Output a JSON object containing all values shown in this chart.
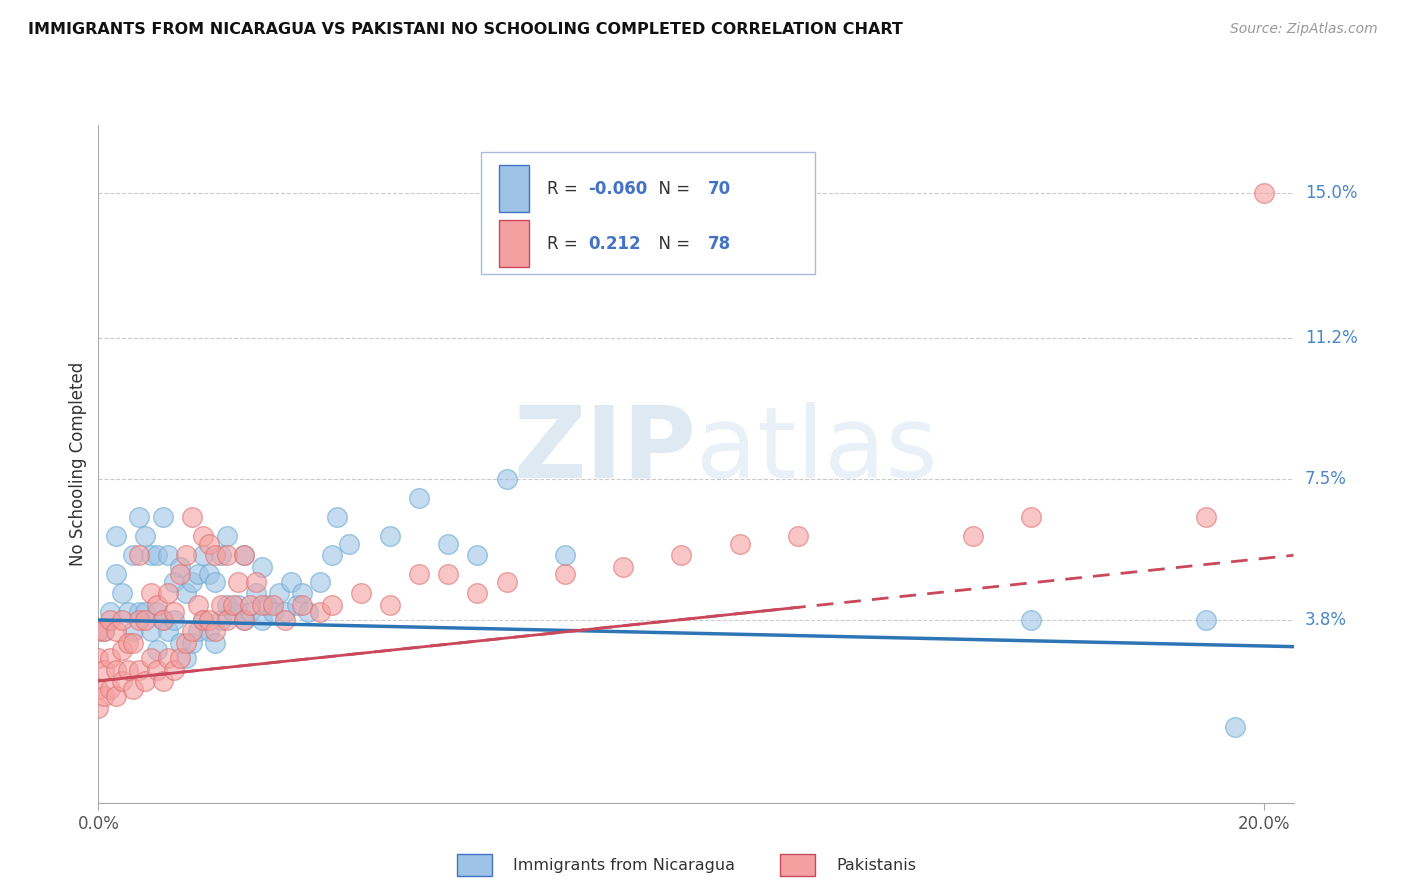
{
  "title": "IMMIGRANTS FROM NICARAGUA VS PAKISTANI NO SCHOOLING COMPLETED CORRELATION CHART",
  "source": "Source: ZipAtlas.com",
  "ylabel": "No Schooling Completed",
  "xlim": [
    0.0,
    0.205
  ],
  "ylim": [
    -0.01,
    0.168
  ],
  "yticks": [
    0.038,
    0.075,
    0.112,
    0.15
  ],
  "ytick_labels": [
    "3.8%",
    "7.5%",
    "11.2%",
    "15.0%"
  ],
  "xtick_left_label": "0.0%",
  "xtick_right_label": "20.0%",
  "legend_r1": "-0.060",
  "legend_n1": "70",
  "legend_r2": "0.212",
  "legend_n2": "78",
  "series1_label": "Immigrants from Nicaragua",
  "series2_label": "Pakistanis",
  "series1_color": "#9DC3E6",
  "series2_color": "#F4A0A0",
  "trend1_color": "#2E75B6",
  "trend2_color": "#C9485B",
  "watermark": "ZIPatlas",
  "watermark_color": "#D0E4F0",
  "background_color": "#FFFFFF",
  "grid_color": "#CCCCCC",
  "blue_scatter_x": [
    0.001,
    0.002,
    0.003,
    0.003,
    0.004,
    0.005,
    0.006,
    0.006,
    0.007,
    0.007,
    0.008,
    0.008,
    0.009,
    0.009,
    0.01,
    0.01,
    0.01,
    0.011,
    0.011,
    0.012,
    0.012,
    0.013,
    0.013,
    0.014,
    0.014,
    0.015,
    0.015,
    0.016,
    0.016,
    0.017,
    0.017,
    0.018,
    0.018,
    0.019,
    0.019,
    0.02,
    0.02,
    0.021,
    0.021,
    0.022,
    0.022,
    0.023,
    0.024,
    0.025,
    0.025,
    0.026,
    0.027,
    0.028,
    0.028,
    0.029,
    0.03,
    0.031,
    0.032,
    0.033,
    0.034,
    0.035,
    0.036,
    0.038,
    0.04,
    0.041,
    0.043,
    0.05,
    0.055,
    0.06,
    0.065,
    0.07,
    0.08,
    0.16,
    0.19,
    0.195
  ],
  "blue_scatter_y": [
    0.035,
    0.04,
    0.05,
    0.06,
    0.045,
    0.04,
    0.035,
    0.055,
    0.04,
    0.065,
    0.04,
    0.06,
    0.035,
    0.055,
    0.03,
    0.04,
    0.055,
    0.038,
    0.065,
    0.035,
    0.055,
    0.038,
    0.048,
    0.032,
    0.052,
    0.028,
    0.045,
    0.032,
    0.048,
    0.035,
    0.05,
    0.038,
    0.055,
    0.035,
    0.05,
    0.032,
    0.048,
    0.038,
    0.055,
    0.042,
    0.06,
    0.04,
    0.042,
    0.038,
    0.055,
    0.04,
    0.045,
    0.038,
    0.052,
    0.042,
    0.04,
    0.045,
    0.04,
    0.048,
    0.042,
    0.045,
    0.04,
    0.048,
    0.055,
    0.065,
    0.058,
    0.06,
    0.07,
    0.058,
    0.055,
    0.075,
    0.055,
    0.038,
    0.038,
    0.01
  ],
  "pink_scatter_x": [
    0.0,
    0.0,
    0.0,
    0.0,
    0.001,
    0.001,
    0.001,
    0.002,
    0.002,
    0.002,
    0.003,
    0.003,
    0.003,
    0.004,
    0.004,
    0.004,
    0.005,
    0.005,
    0.006,
    0.006,
    0.007,
    0.007,
    0.007,
    0.008,
    0.008,
    0.009,
    0.009,
    0.01,
    0.01,
    0.011,
    0.011,
    0.012,
    0.012,
    0.013,
    0.013,
    0.014,
    0.014,
    0.015,
    0.015,
    0.016,
    0.016,
    0.017,
    0.018,
    0.018,
    0.019,
    0.019,
    0.02,
    0.02,
    0.021,
    0.022,
    0.022,
    0.023,
    0.024,
    0.025,
    0.025,
    0.026,
    0.027,
    0.028,
    0.03,
    0.032,
    0.035,
    0.038,
    0.04,
    0.045,
    0.05,
    0.055,
    0.06,
    0.065,
    0.07,
    0.08,
    0.09,
    0.1,
    0.11,
    0.12,
    0.15,
    0.16,
    0.19,
    0.2
  ],
  "pink_scatter_y": [
    0.015,
    0.02,
    0.028,
    0.035,
    0.018,
    0.025,
    0.035,
    0.02,
    0.028,
    0.038,
    0.018,
    0.025,
    0.035,
    0.022,
    0.03,
    0.038,
    0.025,
    0.032,
    0.02,
    0.032,
    0.025,
    0.038,
    0.055,
    0.022,
    0.038,
    0.028,
    0.045,
    0.025,
    0.042,
    0.022,
    0.038,
    0.028,
    0.045,
    0.025,
    0.04,
    0.028,
    0.05,
    0.032,
    0.055,
    0.035,
    0.065,
    0.042,
    0.038,
    0.06,
    0.038,
    0.058,
    0.035,
    0.055,
    0.042,
    0.038,
    0.055,
    0.042,
    0.048,
    0.038,
    0.055,
    0.042,
    0.048,
    0.042,
    0.042,
    0.038,
    0.042,
    0.04,
    0.042,
    0.045,
    0.042,
    0.05,
    0.05,
    0.045,
    0.048,
    0.05,
    0.052,
    0.055,
    0.058,
    0.06,
    0.06,
    0.065,
    0.065,
    0.15
  ],
  "trend1_start_y": 0.038,
  "trend1_end_y": 0.031,
  "trend2_start_y": 0.022,
  "trend2_end_y": 0.055
}
